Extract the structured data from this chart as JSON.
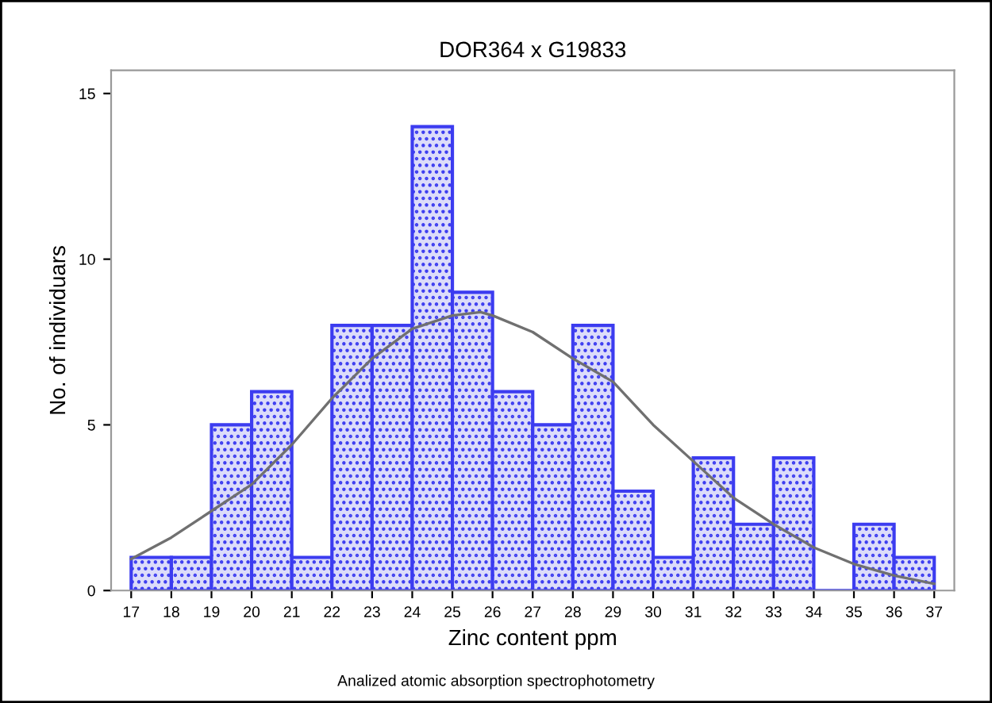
{
  "chart_data": {
    "type": "histogram",
    "title": "DOR364 x G19833",
    "xlabel": "Zinc content ppm",
    "ylabel": "No. of individuars",
    "annotations": [
      "Analized atomic absorption spectrophotometry"
    ],
    "bins": [
      17,
      18,
      19,
      20,
      21,
      22,
      23,
      24,
      25,
      26,
      27,
      28,
      29,
      30,
      31,
      32,
      33,
      34,
      35,
      36,
      37
    ],
    "series": [
      {
        "color": "#3c3cf0",
        "values": [
          1,
          1,
          5,
          6,
          1,
          8,
          8,
          14,
          9,
          6,
          5,
          8,
          3,
          1,
          4,
          2,
          4,
          0,
          2,
          1
        ]
      },
      {
        "type": "line",
        "color": "#707070",
        "x": [
          17,
          18,
          19,
          20,
          21,
          22,
          23,
          24,
          25,
          25.7,
          26,
          27,
          28,
          29,
          30,
          31,
          32,
          33,
          34,
          35,
          36,
          37
        ],
        "values": [
          0.95,
          1.6,
          2.4,
          3.2,
          4.4,
          5.8,
          7.0,
          7.9,
          8.3,
          8.4,
          8.3,
          7.8,
          7.0,
          6.3,
          5.0,
          3.9,
          2.8,
          2.0,
          1.3,
          0.8,
          0.45,
          0.2
        ]
      }
    ],
    "xlim": [
      16.5,
      37.5
    ],
    "ylim": [
      0,
      15.7
    ],
    "xticks": [
      17,
      18,
      19,
      20,
      21,
      22,
      23,
      24,
      25,
      26,
      27,
      28,
      29,
      30,
      31,
      32,
      33,
      34,
      35,
      36,
      37
    ],
    "yticks": [
      0,
      5,
      10,
      15
    ],
    "grid": false,
    "legend": false
  }
}
